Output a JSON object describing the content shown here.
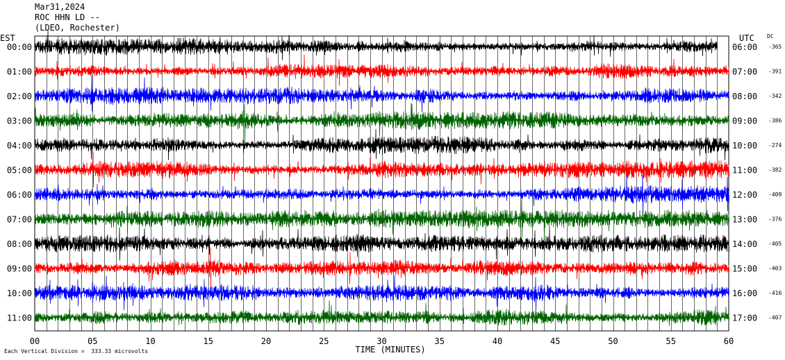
{
  "header": {
    "date": "Mar31,2024",
    "station": "ROC HHN LD --",
    "network": "(LDEO, Rochester)"
  },
  "left_tz": "EST",
  "right_tz": "UTC",
  "dc_header": "DC",
  "footer": "Each Vertical Division =  333.33 microvolts",
  "colors": {
    "black": "#000000",
    "red": "#ff0000",
    "blue": "#0000ff",
    "green": "#006400"
  },
  "chart_data": {
    "type": "line",
    "xlabel": "TIME (MINUTES)",
    "xlim": [
      0,
      60
    ],
    "x_ticks": [
      "00",
      "05",
      "10",
      "15",
      "20",
      "25",
      "30",
      "35",
      "40",
      "45",
      "50",
      "55",
      "60"
    ],
    "rows": [
      {
        "est": "00:00",
        "utc": "06:00",
        "dc": "-365",
        "color": "#000000",
        "end_minute": 59
      },
      {
        "est": "01:00",
        "utc": "07:00",
        "dc": "-391",
        "color": "#ff0000",
        "end_minute": 60
      },
      {
        "est": "02:00",
        "utc": "08:00",
        "dc": "-342",
        "color": "#0000ff",
        "end_minute": 60
      },
      {
        "est": "03:00",
        "utc": "09:00",
        "dc": "-386",
        "color": "#006400",
        "end_minute": 60
      },
      {
        "est": "04:00",
        "utc": "10:00",
        "dc": "-274",
        "color": "#000000",
        "end_minute": 60
      },
      {
        "est": "05:00",
        "utc": "11:00",
        "dc": "-382",
        "color": "#ff0000",
        "end_minute": 60
      },
      {
        "est": "06:00",
        "utc": "12:00",
        "dc": "-409",
        "color": "#0000ff",
        "end_minute": 60
      },
      {
        "est": "07:00",
        "utc": "13:00",
        "dc": "-376",
        "color": "#006400",
        "end_minute": 60
      },
      {
        "est": "08:00",
        "utc": "14:00",
        "dc": "-405",
        "color": "#000000",
        "end_minute": 60
      },
      {
        "est": "09:00",
        "utc": "15:00",
        "dc": "-403",
        "color": "#ff0000",
        "end_minute": 60
      },
      {
        "est": "10:00",
        "utc": "16:00",
        "dc": "-416",
        "color": "#0000ff",
        "end_minute": 60
      },
      {
        "est": "11:00",
        "utc": "17:00",
        "dc": "-407",
        "color": "#006400",
        "end_minute": 60
      }
    ]
  }
}
